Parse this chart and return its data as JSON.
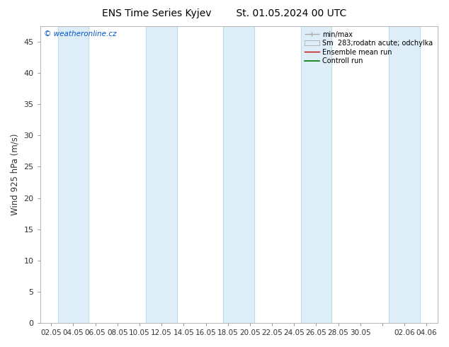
{
  "title": "ENS Time Series Kyjev",
  "subtitle": "St. 01.05.2024 00 UTC",
  "ylabel": "Wind 925 hPa (m/s)",
  "ylim": [
    0,
    47.5
  ],
  "yticks": [
    0,
    5,
    10,
    15,
    20,
    25,
    30,
    35,
    40,
    45
  ],
  "xtick_labels": [
    "02.05",
    "04.05",
    "06.05",
    "08.05",
    "10.05",
    "12.05",
    "14.05",
    "16.05",
    "18.05",
    "20.05",
    "22.05",
    "24.05",
    "26.05",
    "28.05",
    "30.05",
    "",
    "02.06",
    "04.06"
  ],
  "watermark": "© weatheronline.cz",
  "watermark_color": "#0055cc",
  "legend_items": [
    {
      "label": "min/max"
    },
    {
      "label": "Sm  283;rodatn acute; odchylka"
    },
    {
      "label": "Ensemble mean run"
    },
    {
      "label": "Controll run"
    }
  ],
  "band_color": "#ddeef8",
  "band_edge_color": "#aaccdd",
  "background_color": "#ffffff",
  "figsize": [
    6.34,
    4.9
  ],
  "dpi": 100
}
